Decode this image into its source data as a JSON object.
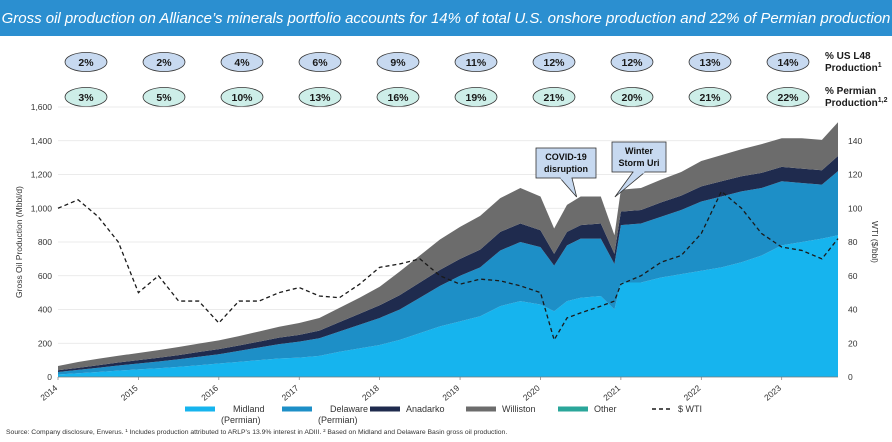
{
  "title": "Gross oil production on Alliance’s minerals portfolio accounts for 14% of total U.S. onshore production and 22% of Permian production",
  "pill_rows": [
    {
      "label": [
        "% US L48",
        "Production"
      ],
      "sup": "1",
      "color": "#c7d9f0",
      "values": [
        "2%",
        "2%",
        "4%",
        "6%",
        "9%",
        "11%",
        "12%",
        "12%",
        "13%",
        "14%"
      ]
    },
    {
      "label": [
        "% Permian",
        "Production"
      ],
      "sup": "1,2",
      "color": "#cdeee8",
      "values": [
        "3%",
        "5%",
        "10%",
        "13%",
        "16%",
        "19%",
        "21%",
        "20%",
        "21%",
        "22%"
      ]
    }
  ],
  "source_note": "Source: Company disclosure, Enverus. ¹ Includes production attributed to ARLP’s 13.9% interest in ADIII. ² Based on Midland and Delaware Basin gross oil production.",
  "chart_data": {
    "type": "area",
    "ylabel": "Gross Oil Production (Mbbl/d)",
    "y2label": "WTI ($/bbl)",
    "ylim": [
      0,
      1600
    ],
    "y2lim": [
      0,
      160
    ],
    "xlim": [
      2014.0,
      2023.7
    ],
    "yticks": [
      "0",
      "200",
      "400",
      "600",
      "800",
      "1,000",
      "1,200",
      "1,400",
      "1,600"
    ],
    "y2ticks": [
      "0",
      "20",
      "40",
      "60",
      "80",
      "100",
      "120",
      "140"
    ],
    "xticks": [
      "2014",
      "2015",
      "2016",
      "2017",
      "2018",
      "2019",
      "2020",
      "2021",
      "2022",
      "2023"
    ],
    "x": [
      2014.0,
      2014.25,
      2014.5,
      2014.75,
      2015.0,
      2015.25,
      2015.5,
      2015.75,
      2016.0,
      2016.25,
      2016.5,
      2016.75,
      2017.0,
      2017.25,
      2017.5,
      2017.75,
      2018.0,
      2018.25,
      2018.5,
      2018.75,
      2019.0,
      2019.25,
      2019.5,
      2019.75,
      2020.0,
      2020.17,
      2020.33,
      2020.5,
      2020.75,
      2020.92,
      2021.0,
      2021.25,
      2021.5,
      2021.75,
      2022.0,
      2022.25,
      2022.5,
      2022.75,
      2023.0,
      2023.25,
      2023.5,
      2023.7
    ],
    "series": [
      {
        "name": "Midland (Permian)",
        "color": "#16b4ee",
        "values": [
          15,
          22,
          30,
          38,
          45,
          52,
          60,
          70,
          80,
          90,
          100,
          110,
          115,
          125,
          150,
          170,
          190,
          220,
          260,
          300,
          330,
          360,
          420,
          450,
          430,
          390,
          450,
          470,
          480,
          400,
          560,
          560,
          590,
          610,
          630,
          650,
          680,
          720,
          780,
          800,
          820,
          840
        ]
      },
      {
        "name": "Delaware (Permian)",
        "color": "#1d8fc7",
        "values": [
          15,
          20,
          25,
          30,
          35,
          40,
          45,
          50,
          55,
          65,
          75,
          85,
          95,
          105,
          120,
          140,
          160,
          180,
          210,
          240,
          270,
          290,
          330,
          350,
          340,
          270,
          330,
          350,
          340,
          270,
          340,
          350,
          360,
          380,
          410,
          420,
          420,
          400,
          380,
          350,
          320,
          380
        ]
      },
      {
        "name": "Anadarko",
        "color": "#1f2b4e",
        "values": [
          10,
          12,
          15,
          18,
          20,
          22,
          25,
          28,
          30,
          32,
          35,
          38,
          40,
          45,
          55,
          65,
          75,
          85,
          90,
          95,
          100,
          105,
          110,
          110,
          100,
          70,
          80,
          80,
          90,
          60,
          80,
          80,
          85,
          85,
          90,
          90,
          90,
          90,
          85,
          85,
          85,
          90
        ]
      },
      {
        "name": "Williston",
        "color": "#6c6c6c",
        "values": [
          25,
          35,
          38,
          40,
          42,
          45,
          48,
          50,
          52,
          55,
          60,
          65,
          70,
          75,
          85,
          95,
          110,
          140,
          160,
          180,
          190,
          200,
          200,
          210,
          200,
          150,
          160,
          170,
          160,
          110,
          130,
          130,
          135,
          140,
          150,
          155,
          160,
          170,
          170,
          180,
          180,
          200
        ]
      },
      {
        "name": "Other",
        "color": "#2aa69a",
        "values": [
          0,
          0,
          0,
          0,
          0,
          0,
          0,
          0,
          0,
          0,
          0,
          0,
          0,
          0,
          0,
          0,
          0,
          0,
          0,
          0,
          0,
          0,
          0,
          0,
          0,
          0,
          0,
          0,
          0,
          0,
          0,
          0,
          0,
          0,
          0,
          0,
          0,
          0,
          0,
          0,
          0,
          0
        ]
      }
    ],
    "wti": {
      "name": "$ WTI",
      "color": "#1a1a1a",
      "axis": "right",
      "values": [
        100,
        105,
        95,
        80,
        50,
        60,
        45,
        45,
        32,
        45,
        45,
        50,
        53,
        48,
        47,
        55,
        65,
        67,
        70,
        60,
        55,
        58,
        57,
        54,
        50,
        22,
        35,
        38,
        42,
        45,
        55,
        60,
        68,
        72,
        85,
        110,
        100,
        85,
        77,
        75,
        70,
        82
      ]
    },
    "annotations": [
      {
        "text": [
          "COVID-19",
          "disruption"
        ],
        "x": 2020.4
      },
      {
        "text": [
          "Winter",
          "Storm Uri"
        ],
        "x": 2021.0
      }
    ]
  }
}
